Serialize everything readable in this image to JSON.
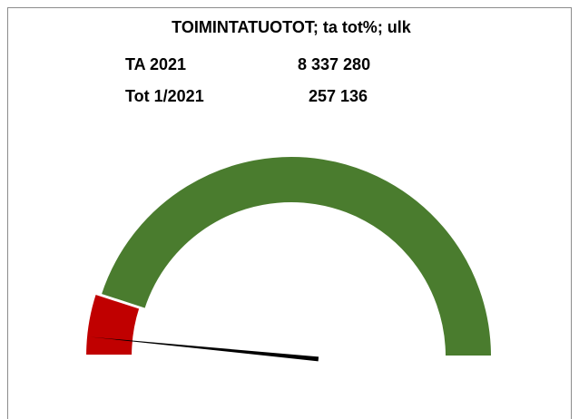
{
  "chart_data": {
    "type": "gauge",
    "title": "TOIMINTATUOTOT; ta tot%; ulk",
    "info": [
      [
        "TA 2021",
        "8 337 280"
      ],
      [
        "Tot 1/2021",
        "257 136"
      ]
    ],
    "bands": {
      "values": [
        10,
        90
      ],
      "colors": [
        "#c00000",
        "#4a7c2e"
      ]
    },
    "needle": 3.08,
    "needle_color": "#000000",
    "ylim": [
      0,
      100
    ]
  }
}
